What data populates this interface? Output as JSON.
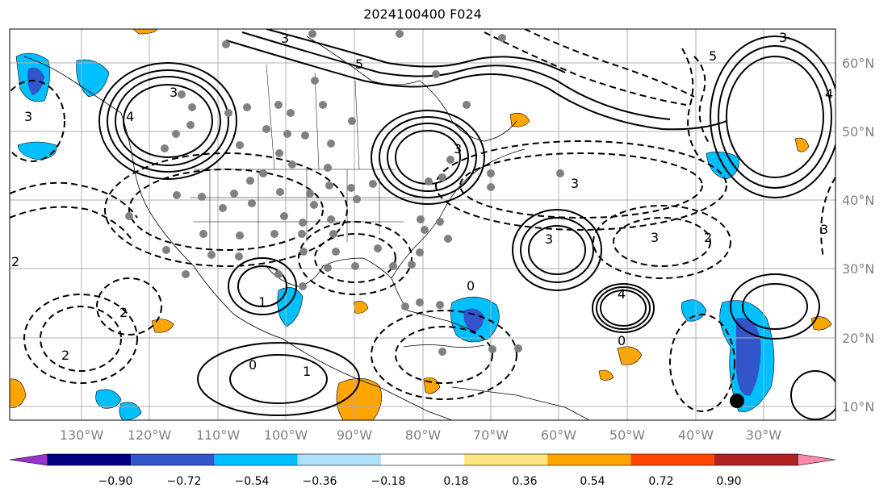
{
  "title": "2024100400 F024",
  "map": {
    "lon_labels": [
      "130°W",
      "120°W",
      "110°W",
      "100°W",
      "90°W",
      "80°W",
      "70°W",
      "60°W",
      "50°W",
      "40°W",
      "30°W"
    ],
    "lat_labels": [
      "60°N",
      "50°N",
      "40°N",
      "30°N",
      "20°N",
      "10°N"
    ],
    "contour_labels": [
      "3",
      "5",
      "3",
      "4",
      "5",
      "3",
      "3",
      "4",
      "3",
      "2",
      "3",
      "3",
      "3",
      "2",
      "1",
      "0",
      "4",
      "3",
      "2",
      "1",
      "2",
      "0",
      "0"
    ],
    "colors": {
      "positive_contour": "#000000",
      "negative_contour": "#000000",
      "gridline": "#b0b0b0",
      "station_dot": "#808080",
      "marker": "#000000"
    }
  },
  "colorbar": {
    "tick_labels": [
      "−0.90",
      "−0.72",
      "−0.54",
      "−0.36",
      "−0.18",
      "0.18",
      "0.36",
      "0.54",
      "0.72",
      "0.90"
    ],
    "colors": [
      "#9933cc",
      "#000080",
      "#3355cc",
      "#00bfff",
      "#b0e0ff",
      "#ffffff",
      "#ffe680",
      "#ffa500",
      "#ff4500",
      "#b22222",
      "#ff88aa"
    ]
  }
}
